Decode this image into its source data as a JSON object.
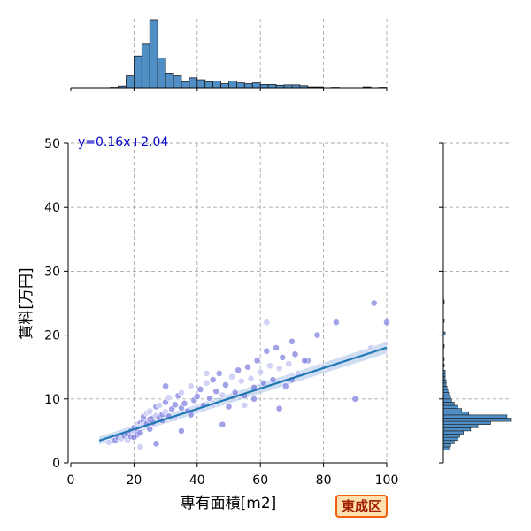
{
  "chart_data": {
    "type": "scatter",
    "xlabel": "専有面積[m2]",
    "ylabel": "賃料[万円]",
    "xlim": [
      0,
      100
    ],
    "ylim": [
      0,
      50
    ],
    "x_ticks": [
      "0",
      "20",
      "40",
      "60",
      "80",
      "100"
    ],
    "y_ticks": [
      "0",
      "10",
      "20",
      "30",
      "40",
      "50"
    ],
    "grid": true,
    "regression": {
      "equation_label": "y=0.16x+2.04",
      "slope": 0.16,
      "intercept": 2.04,
      "x_range": [
        9,
        100
      ]
    },
    "points": {
      "x": [
        12,
        14,
        15,
        16,
        17,
        18,
        18,
        19,
        19,
        20,
        20,
        21,
        21,
        21,
        22,
        22,
        22,
        23,
        23,
        23,
        24,
        24,
        25,
        25,
        25,
        26,
        26,
        27,
        27,
        28,
        28,
        29,
        29,
        30,
        30,
        31,
        31,
        32,
        33,
        33,
        34,
        35,
        35,
        36,
        37,
        38,
        39,
        40,
        40,
        41,
        42,
        43,
        44,
        45,
        45,
        46,
        47,
        48,
        49,
        50,
        51,
        52,
        53,
        54,
        55,
        56,
        57,
        58,
        59,
        60,
        61,
        62,
        63,
        64,
        65,
        66,
        67,
        68,
        69,
        70,
        71,
        72,
        75,
        78,
        80,
        84,
        90,
        95,
        96,
        100,
        62,
        70,
        74,
        43,
        30,
        27,
        22,
        35,
        48,
        55,
        58,
        66,
        25,
        20,
        38,
        45
      ],
      "y": [
        3.2,
        3.5,
        4.0,
        3.8,
        4.2,
        4.5,
        3.6,
        5.0,
        4.1,
        4.8,
        5.5,
        5.2,
        6.0,
        4.4,
        6.2,
        5.6,
        4.7,
        6.5,
        5.9,
        7.2,
        6.1,
        7.8,
        6.8,
        5.3,
        8.2,
        7.0,
        6.3,
        7.4,
        8.8,
        7.1,
        9.0,
        7.6,
        6.6,
        8.0,
        9.5,
        7.3,
        10.2,
        8.4,
        9.1,
        7.0,
        10.5,
        8.6,
        11.0,
        9.3,
        8.1,
        12.0,
        9.8,
        10.4,
        8.5,
        11.5,
        9.0,
        12.5,
        10.1,
        13.0,
        9.4,
        11.2,
        14.0,
        10.6,
        12.2,
        8.8,
        13.5,
        11.0,
        14.5,
        12.8,
        10.5,
        15.0,
        13.2,
        11.8,
        16.0,
        14.2,
        12.5,
        17.5,
        15.2,
        13.0,
        18.0,
        14.8,
        16.5,
        12.0,
        15.5,
        19.0,
        17.0,
        14.0,
        16.0,
        20.0,
        15.0,
        22.0,
        10.0,
        18.0,
        25.0,
        22.0,
        22.0,
        13.0,
        16.0,
        14.0,
        12.0,
        3.0,
        2.5,
        5.0,
        6.0,
        9.0,
        10.0,
        8.5,
        8.0,
        4.0,
        7.5,
        9.0
      ]
    },
    "top_histogram": {
      "bin_edges": [
        0,
        2.5,
        5,
        7.5,
        10,
        12.5,
        15,
        17.5,
        20,
        22.5,
        25,
        27.5,
        30,
        32.5,
        35,
        37.5,
        40,
        42.5,
        45,
        47.5,
        50,
        52.5,
        55,
        57.5,
        60,
        62.5,
        65,
        67.5,
        70,
        72.5,
        75,
        77.5,
        80,
        82.5,
        85,
        87.5,
        90,
        92.5,
        95,
        97.5,
        100
      ],
      "counts": [
        0,
        0,
        0,
        0,
        0,
        1,
        4,
        30,
        80,
        110,
        170,
        75,
        35,
        30,
        15,
        25,
        20,
        15,
        17,
        10,
        17,
        12,
        10,
        12,
        8,
        8,
        6,
        7,
        7,
        5,
        2,
        2,
        0,
        1,
        0,
        0,
        0,
        2,
        0,
        1
      ]
    },
    "right_histogram": {
      "bin_width": 0.5,
      "bins": [
        {
          "y0": 2.0,
          "count": 6
        },
        {
          "y0": 2.5,
          "count": 8
        },
        {
          "y0": 3.0,
          "count": 12
        },
        {
          "y0": 3.5,
          "count": 16
        },
        {
          "y0": 4.0,
          "count": 18
        },
        {
          "y0": 4.5,
          "count": 22
        },
        {
          "y0": 5.0,
          "count": 30
        },
        {
          "y0": 5.5,
          "count": 38
        },
        {
          "y0": 6.0,
          "count": 52
        },
        {
          "y0": 6.5,
          "count": 74
        },
        {
          "y0": 7.0,
          "count": 70
        },
        {
          "y0": 7.5,
          "count": 28
        },
        {
          "y0": 8.0,
          "count": 20
        },
        {
          "y0": 8.5,
          "count": 16
        },
        {
          "y0": 9.0,
          "count": 12
        },
        {
          "y0": 9.5,
          "count": 9
        },
        {
          "y0": 10.0,
          "count": 8
        },
        {
          "y0": 10.5,
          "count": 6
        },
        {
          "y0": 11.0,
          "count": 5
        },
        {
          "y0": 11.5,
          "count": 4
        },
        {
          "y0": 12.0,
          "count": 3
        },
        {
          "y0": 12.5,
          "count": 3
        },
        {
          "y0": 13.0,
          "count": 2
        },
        {
          "y0": 13.5,
          "count": 2
        },
        {
          "y0": 14.0,
          "count": 2
        },
        {
          "y0": 15.0,
          "count": 1
        },
        {
          "y0": 16.0,
          "count": 1
        },
        {
          "y0": 18.0,
          "count": 1
        },
        {
          "y0": 20.0,
          "count": 2
        },
        {
          "y0": 22.0,
          "count": 1
        },
        {
          "y0": 25.0,
          "count": 1
        }
      ]
    }
  },
  "ward_label": "東成区",
  "colors": {
    "scatter_fill": "#7b7be0",
    "scatter_light": "#c9cbf5",
    "regression_line": "#1f77b4",
    "regression_band": "#aec7e8",
    "hist_fill": "#4f8fc6",
    "equation_text": "#0000cc",
    "badge_border": "#f06010"
  }
}
